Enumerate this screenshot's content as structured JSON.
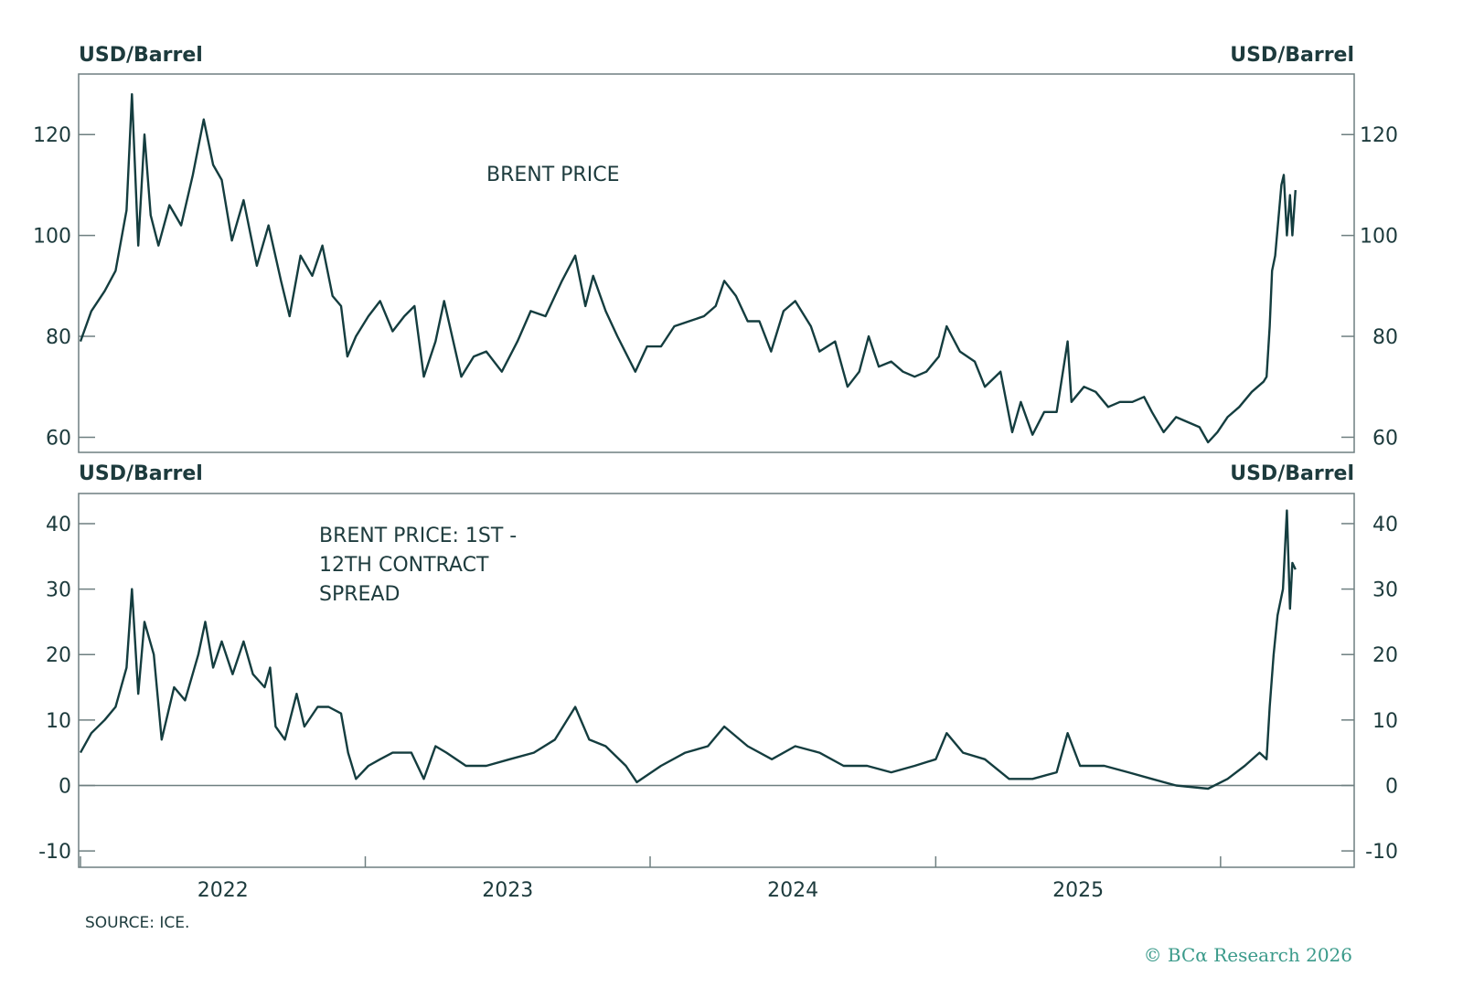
{
  "chart_data": [
    {
      "type": "line",
      "label": "BRENT PRICE",
      "ylabel_left": "USD/Barrel",
      "ylabel_right": "USD/Barrel",
      "ylim": [
        57,
        132
      ],
      "yticks": [
        60,
        80,
        100,
        120
      ],
      "grid": false,
      "series": [
        {
          "color": "#143d3f",
          "points": [
            [
              "2022-01-01",
              79
            ],
            [
              "2022-01-15",
              85
            ],
            [
              "2022-02-01",
              89
            ],
            [
              "2022-02-15",
              93
            ],
            [
              "2022-03-01",
              105
            ],
            [
              "2022-03-08",
              128
            ],
            [
              "2022-03-16",
              98
            ],
            [
              "2022-03-24",
              120
            ],
            [
              "2022-04-01",
              104
            ],
            [
              "2022-04-11",
              98
            ],
            [
              "2022-04-25",
              106
            ],
            [
              "2022-05-10",
              102
            ],
            [
              "2022-05-25",
              112
            ],
            [
              "2022-06-08",
              123
            ],
            [
              "2022-06-20",
              114
            ],
            [
              "2022-07-01",
              111
            ],
            [
              "2022-07-14",
              99
            ],
            [
              "2022-07-29",
              107
            ],
            [
              "2022-08-15",
              94
            ],
            [
              "2022-08-30",
              102
            ],
            [
              "2022-09-15",
              91
            ],
            [
              "2022-09-26",
              84
            ],
            [
              "2022-10-10",
              96
            ],
            [
              "2022-10-25",
              92
            ],
            [
              "2022-11-07",
              98
            ],
            [
              "2022-11-20",
              88
            ],
            [
              "2022-12-01",
              86
            ],
            [
              "2022-12-09",
              76
            ],
            [
              "2022-12-20",
              80
            ],
            [
              "2023-01-05",
              84
            ],
            [
              "2023-01-20",
              87
            ],
            [
              "2023-02-05",
              81
            ],
            [
              "2023-02-20",
              84
            ],
            [
              "2023-03-05",
              86
            ],
            [
              "2023-03-17",
              72
            ],
            [
              "2023-04-01",
              79
            ],
            [
              "2023-04-12",
              87
            ],
            [
              "2023-05-04",
              72
            ],
            [
              "2023-05-20",
              76
            ],
            [
              "2023-06-05",
              77
            ],
            [
              "2023-06-25",
              73
            ],
            [
              "2023-07-15",
              79
            ],
            [
              "2023-08-01",
              85
            ],
            [
              "2023-08-20",
              84
            ],
            [
              "2023-09-10",
              91
            ],
            [
              "2023-09-27",
              96
            ],
            [
              "2023-10-10",
              86
            ],
            [
              "2023-10-20",
              92
            ],
            [
              "2023-11-05",
              85
            ],
            [
              "2023-11-20",
              80
            ],
            [
              "2023-12-13",
              73
            ],
            [
              "2023-12-28",
              78
            ],
            [
              "2024-01-15",
              78
            ],
            [
              "2024-02-01",
              82
            ],
            [
              "2024-02-20",
              83
            ],
            [
              "2024-03-10",
              84
            ],
            [
              "2024-03-25",
              86
            ],
            [
              "2024-04-05",
              91
            ],
            [
              "2024-04-20",
              88
            ],
            [
              "2024-05-05",
              83
            ],
            [
              "2024-05-20",
              83
            ],
            [
              "2024-06-04",
              77
            ],
            [
              "2024-06-20",
              85
            ],
            [
              "2024-07-05",
              87
            ],
            [
              "2024-07-25",
              82
            ],
            [
              "2024-08-05",
              77
            ],
            [
              "2024-08-25",
              79
            ],
            [
              "2024-09-10",
              70
            ],
            [
              "2024-09-25",
              73
            ],
            [
              "2024-10-07",
              80
            ],
            [
              "2024-10-20",
              74
            ],
            [
              "2024-11-05",
              75
            ],
            [
              "2024-11-20",
              73
            ],
            [
              "2024-12-05",
              72
            ],
            [
              "2024-12-20",
              73
            ],
            [
              "2025-01-05",
              76
            ],
            [
              "2025-01-15",
              82
            ],
            [
              "2025-02-01",
              77
            ],
            [
              "2025-02-20",
              75
            ],
            [
              "2025-03-05",
              70
            ],
            [
              "2025-03-25",
              73
            ],
            [
              "2025-04-09",
              61
            ],
            [
              "2025-04-20",
              67
            ],
            [
              "2025-05-05",
              60.5
            ],
            [
              "2025-05-20",
              65
            ],
            [
              "2025-06-05",
              65
            ],
            [
              "2025-06-19",
              79
            ],
            [
              "2025-06-24",
              67
            ],
            [
              "2025-07-10",
              70
            ],
            [
              "2025-07-25",
              69
            ],
            [
              "2025-08-10",
              66
            ],
            [
              "2025-08-25",
              67
            ],
            [
              "2025-09-10",
              67
            ],
            [
              "2025-09-25",
              68
            ],
            [
              "2025-10-05",
              65
            ],
            [
              "2025-10-20",
              61
            ],
            [
              "2025-11-05",
              64
            ],
            [
              "2025-11-20",
              63
            ],
            [
              "2025-12-05",
              62
            ],
            [
              "2025-12-16",
              59
            ],
            [
              "2025-12-28",
              61
            ],
            [
              "2026-01-10",
              64
            ],
            [
              "2026-01-25",
              66
            ],
            [
              "2026-02-10",
              69
            ],
            [
              "2026-02-25",
              71
            ],
            [
              "2026-03-01",
              72
            ],
            [
              "2026-03-05",
              82
            ],
            [
              "2026-03-08",
              93
            ],
            [
              "2026-03-12",
              96
            ],
            [
              "2026-03-16",
              103
            ],
            [
              "2026-03-20",
              110
            ],
            [
              "2026-03-23",
              112
            ],
            [
              "2026-03-27",
              100
            ],
            [
              "2026-03-31",
              108
            ],
            [
              "2026-04-03",
              100
            ],
            [
              "2026-04-07",
              109
            ]
          ]
        }
      ]
    },
    {
      "type": "line",
      "label": "BRENT PRICE: 1ST - 12TH CONTRACT SPREAD",
      "label_lines": [
        "BRENT PRICE: 1ST -",
        "12TH CONTRACT",
        "SPREAD"
      ],
      "ylabel_left": "USD/Barrel",
      "ylabel_right": "USD/Barrel",
      "ylim": [
        -12.5,
        44.6
      ],
      "yticks": [
        -10,
        0,
        10,
        20,
        30,
        40
      ],
      "zero_line": true,
      "grid": false,
      "series": [
        {
          "color": "#143d3f",
          "points": [
            [
              "2022-01-01",
              5
            ],
            [
              "2022-01-15",
              8
            ],
            [
              "2022-02-01",
              10
            ],
            [
              "2022-02-15",
              12
            ],
            [
              "2022-03-01",
              18
            ],
            [
              "2022-03-08",
              30
            ],
            [
              "2022-03-16",
              14
            ],
            [
              "2022-03-24",
              25
            ],
            [
              "2022-04-05",
              20
            ],
            [
              "2022-04-15",
              7
            ],
            [
              "2022-05-01",
              15
            ],
            [
              "2022-05-15",
              13
            ],
            [
              "2022-06-01",
              20
            ],
            [
              "2022-06-10",
              25
            ],
            [
              "2022-06-20",
              18
            ],
            [
              "2022-07-01",
              22
            ],
            [
              "2022-07-15",
              17
            ],
            [
              "2022-07-29",
              22
            ],
            [
              "2022-08-10",
              17
            ],
            [
              "2022-08-25",
              15
            ],
            [
              "2022-09-01",
              18
            ],
            [
              "2022-09-08",
              9
            ],
            [
              "2022-09-20",
              7
            ],
            [
              "2022-10-05",
              14
            ],
            [
              "2022-10-15",
              9
            ],
            [
              "2022-11-01",
              12
            ],
            [
              "2022-11-15",
              12
            ],
            [
              "2022-12-01",
              11
            ],
            [
              "2022-12-10",
              5
            ],
            [
              "2022-12-20",
              1
            ],
            [
              "2023-01-05",
              3
            ],
            [
              "2023-01-20",
              4
            ],
            [
              "2023-02-05",
              5
            ],
            [
              "2023-03-01",
              5
            ],
            [
              "2023-03-17",
              1
            ],
            [
              "2023-04-01",
              6
            ],
            [
              "2023-04-15",
              5
            ],
            [
              "2023-05-10",
              3
            ],
            [
              "2023-06-05",
              3
            ],
            [
              "2023-07-05",
              4
            ],
            [
              "2023-08-05",
              5
            ],
            [
              "2023-09-01",
              7
            ],
            [
              "2023-09-27",
              12
            ],
            [
              "2023-10-15",
              7
            ],
            [
              "2023-11-05",
              6
            ],
            [
              "2023-12-01",
              3
            ],
            [
              "2023-12-15",
              0.5
            ],
            [
              "2024-01-15",
              3
            ],
            [
              "2024-02-15",
              5
            ],
            [
              "2024-03-15",
              6
            ],
            [
              "2024-04-05",
              9
            ],
            [
              "2024-05-05",
              6
            ],
            [
              "2024-06-05",
              4
            ],
            [
              "2024-07-05",
              6
            ],
            [
              "2024-08-05",
              5
            ],
            [
              "2024-09-05",
              3
            ],
            [
              "2024-10-05",
              3
            ],
            [
              "2024-11-05",
              2
            ],
            [
              "2024-12-05",
              3
            ],
            [
              "2025-01-01",
              4
            ],
            [
              "2025-01-15",
              8
            ],
            [
              "2025-02-05",
              5
            ],
            [
              "2025-03-05",
              4
            ],
            [
              "2025-04-05",
              1
            ],
            [
              "2025-05-05",
              1
            ],
            [
              "2025-06-05",
              2
            ],
            [
              "2025-06-19",
              8
            ],
            [
              "2025-07-05",
              3
            ],
            [
              "2025-08-05",
              3
            ],
            [
              "2025-09-05",
              2
            ],
            [
              "2025-10-05",
              1
            ],
            [
              "2025-11-05",
              0
            ],
            [
              "2025-12-16",
              -0.5
            ],
            [
              "2026-01-10",
              1
            ],
            [
              "2026-02-01",
              3
            ],
            [
              "2026-02-20",
              5
            ],
            [
              "2026-03-01",
              4
            ],
            [
              "2026-03-05",
              12
            ],
            [
              "2026-03-10",
              20
            ],
            [
              "2026-03-15",
              26
            ],
            [
              "2026-03-22",
              30
            ],
            [
              "2026-03-27",
              42
            ],
            [
              "2026-03-31",
              27
            ],
            [
              "2026-04-03",
              34
            ],
            [
              "2026-04-07",
              33
            ]
          ]
        }
      ]
    }
  ],
  "x_axis": {
    "range": [
      "2022-01-01",
      "2026-06-20"
    ],
    "major_ticks": [
      "2022-01-01",
      "2023-01-01",
      "2024-01-01",
      "2025-01-01",
      "2026-01-01"
    ],
    "labels": [
      "2022",
      "2023",
      "2024",
      "2025"
    ]
  },
  "source": "SOURCE: ICE.",
  "copyright": "© BCα Research 2026"
}
